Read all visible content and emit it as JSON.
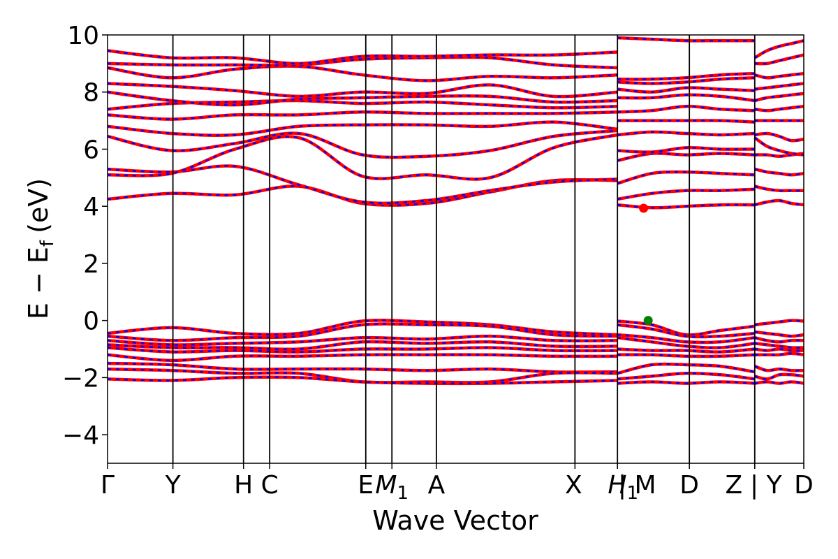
{
  "chart_data": {
    "type": "line",
    "title": "",
    "xlabel": "Wave Vector",
    "ylabel_main": "E − E",
    "ylabel_sub": "f",
    "ylabel_unit": "(eV)",
    "ylim": [
      -5,
      10
    ],
    "yticks": [
      -4,
      -2,
      0,
      2,
      4,
      6,
      8,
      10
    ],
    "ytick_labels": [
      "−4",
      "−2",
      "0",
      "2",
      "4",
      "6",
      "8",
      "10"
    ],
    "xlim": [
      0,
      10.65
    ],
    "kpath": [
      {
        "label": "Γ",
        "x": 0.0
      },
      {
        "label": "Y",
        "x": 1.0
      },
      {
        "label": "H",
        "x": 2.08
      },
      {
        "label": "C",
        "x": 2.48
      },
      {
        "label": "E",
        "x": 3.95
      },
      {
        "label": "M",
        "sub": "1",
        "x": 4.35
      },
      {
        "label": "A",
        "x": 5.03
      },
      {
        "label": "X",
        "x": 7.15
      },
      {
        "label": "H",
        "sub": "1",
        "x": 7.8
      },
      {
        "label": "| M",
        "x": 7.8
      },
      {
        "label": "D",
        "x": 8.9
      },
      {
        "label": "Z",
        "x": 9.9
      },
      {
        "label": "| Y",
        "x": 9.9
      },
      {
        "label": "D",
        "x": 10.65
      }
    ],
    "series": [
      {
        "color": "#ff0000",
        "style": "solid"
      },
      {
        "color": "#0000ff",
        "style": "dashed"
      }
    ],
    "segments": [
      {
        "x0": 0.0,
        "x1": 7.8,
        "valence": [
          [
            -0.45,
            -0.25,
            -0.45,
            -0.45,
            -0.02,
            -0.05,
            -0.15,
            -0.4,
            -0.5
          ],
          [
            -0.55,
            -0.7,
            -0.6,
            -0.55,
            -0.15,
            -0.15,
            -0.2,
            -0.5,
            -0.55
          ],
          [
            -0.7,
            -0.85,
            -0.8,
            -0.75,
            -0.6,
            -0.65,
            -0.55,
            -0.7,
            -0.7
          ],
          [
            -0.85,
            -0.95,
            -0.95,
            -1.0,
            -0.75,
            -0.8,
            -0.75,
            -0.9,
            -0.9
          ],
          [
            -0.95,
            -1.1,
            -1.05,
            -1.1,
            -1.0,
            -1.0,
            -0.95,
            -1.05,
            -1.05
          ],
          [
            -1.2,
            -1.4,
            -1.25,
            -1.25,
            -1.2,
            -1.2,
            -1.2,
            -1.25,
            -1.25
          ],
          [
            -1.5,
            -1.55,
            -1.7,
            -1.7,
            -1.7,
            -1.75,
            -1.7,
            -1.8,
            -1.8
          ],
          [
            -1.7,
            -1.75,
            -1.85,
            -1.85,
            -2.15,
            -2.15,
            -2.15,
            -1.85,
            -1.85
          ],
          [
            -2.05,
            -2.1,
            -2.0,
            -2.0,
            -2.15,
            -2.2,
            -2.2,
            -2.15,
            -2.1
          ]
        ],
        "conduction": [
          [
            4.25,
            4.45,
            4.4,
            4.7,
            4.1,
            4.1,
            4.5,
            4.9,
            4.9
          ],
          [
            5.3,
            5.2,
            5.4,
            4.75,
            4.15,
            4.2,
            4.55,
            4.85,
            4.95
          ],
          [
            5.1,
            5.15,
            6.0,
            6.4,
            5.05,
            5.1,
            5.0,
            6.05,
            6.5
          ],
          [
            6.45,
            5.95,
            6.2,
            6.55,
            5.8,
            5.75,
            5.95,
            6.45,
            6.65
          ],
          [
            6.8,
            6.55,
            6.5,
            6.8,
            6.85,
            6.85,
            6.8,
            6.95,
            6.7
          ],
          [
            7.2,
            7.05,
            7.2,
            7.2,
            7.3,
            7.25,
            7.25,
            7.25,
            7.3
          ],
          [
            7.4,
            7.6,
            7.65,
            7.7,
            7.6,
            7.65,
            7.55,
            7.45,
            7.5
          ],
          [
            8.0,
            7.7,
            7.55,
            7.75,
            7.8,
            7.85,
            7.85,
            7.65,
            7.7
          ],
          [
            8.3,
            8.2,
            8.05,
            7.85,
            8.0,
            7.95,
            8.25,
            7.85,
            8.0
          ],
          [
            8.85,
            8.5,
            8.8,
            8.9,
            8.6,
            8.4,
            8.55,
            8.5,
            8.6
          ],
          [
            9.0,
            8.95,
            8.95,
            8.95,
            9.15,
            9.2,
            9.2,
            8.95,
            8.85
          ],
          [
            9.45,
            9.2,
            9.2,
            9.0,
            9.25,
            9.25,
            9.3,
            9.3,
            9.4
          ]
        ]
      },
      {
        "x0": 7.8,
        "x1": 9.9,
        "valence": [
          [
            -0.02,
            -0.15,
            -0.5,
            -0.35,
            -0.2
          ],
          [
            -0.15,
            -0.3,
            -0.55,
            -0.55,
            -0.45
          ],
          [
            -0.5,
            -0.6,
            -0.75,
            -0.75,
            -0.6
          ],
          [
            -0.6,
            -0.75,
            -0.9,
            -0.95,
            -0.8
          ],
          [
            -1.0,
            -1.05,
            -1.05,
            -1.1,
            -1.0
          ],
          [
            -1.2,
            -1.2,
            -1.25,
            -1.25,
            -1.2
          ],
          [
            -1.85,
            -1.55,
            -1.55,
            -1.6,
            -1.8
          ],
          [
            -2.05,
            -1.95,
            -1.85,
            -1.9,
            -2.05
          ],
          [
            -2.2,
            -2.15,
            -2.2,
            -2.15,
            -2.2
          ]
        ],
        "conduction": [
          [
            4.05,
            3.95,
            4.0,
            4.05,
            4.05
          ],
          [
            4.25,
            4.45,
            4.55,
            4.55,
            4.6
          ],
          [
            4.8,
            5.15,
            5.2,
            5.15,
            5.1
          ],
          [
            5.6,
            5.85,
            5.8,
            5.85,
            5.8
          ],
          [
            5.95,
            5.9,
            6.05,
            6.0,
            6.0
          ],
          [
            6.5,
            6.6,
            6.55,
            6.5,
            6.55
          ],
          [
            7.0,
            7.0,
            7.0,
            7.0,
            6.95
          ],
          [
            7.3,
            7.35,
            7.5,
            7.4,
            7.35
          ],
          [
            7.8,
            7.8,
            7.9,
            7.85,
            7.7
          ],
          [
            8.1,
            8.0,
            8.15,
            8.1,
            8.05
          ],
          [
            8.35,
            8.3,
            8.35,
            8.45,
            8.5
          ],
          [
            8.45,
            8.45,
            8.5,
            8.6,
            8.65
          ],
          [
            9.9,
            9.85,
            9.8,
            9.8,
            9.8
          ]
        ]
      },
      {
        "x0": 9.9,
        "x1": 10.65,
        "valence": [
          [
            -0.15,
            -0.1,
            -0.05,
            0.0,
            -0.02
          ],
          [
            -0.4,
            -0.45,
            -0.5,
            -0.55,
            -0.5
          ],
          [
            -0.6,
            -0.7,
            -0.75,
            -0.7,
            -0.7
          ],
          [
            -0.8,
            -0.85,
            -0.9,
            -0.95,
            -0.95
          ],
          [
            -1.0,
            -1.05,
            -1.0,
            -1.05,
            -1.05
          ],
          [
            -1.2,
            -1.2,
            -1.2,
            -1.15,
            -1.2
          ],
          [
            -1.6,
            -1.75,
            -1.7,
            -1.75,
            -1.75
          ],
          [
            -1.95,
            -2.05,
            -1.9,
            -1.9,
            -1.95
          ],
          [
            -2.2,
            -2.15,
            -2.2,
            -2.15,
            -2.2
          ]
        ],
        "conduction": [
          [
            4.05,
            4.15,
            4.2,
            4.1,
            4.05
          ],
          [
            4.7,
            4.6,
            4.55,
            4.55,
            4.55
          ],
          [
            5.3,
            5.2,
            5.15,
            5.1,
            5.15
          ],
          [
            5.8,
            5.8,
            5.75,
            5.8,
            5.85
          ],
          [
            6.4,
            6.1,
            5.95,
            5.85,
            5.8
          ],
          [
            6.5,
            6.55,
            6.45,
            6.3,
            6.35
          ],
          [
            7.0,
            7.0,
            7.0,
            7.0,
            7.0
          ],
          [
            7.4,
            7.35,
            7.4,
            7.45,
            7.5
          ],
          [
            7.7,
            7.8,
            7.85,
            7.9,
            7.95
          ],
          [
            8.1,
            8.15,
            8.2,
            8.25,
            8.3
          ],
          [
            8.6,
            8.5,
            8.55,
            8.6,
            8.65
          ],
          [
            9.0,
            9.0,
            9.1,
            9.2,
            9.3
          ],
          [
            9.2,
            9.45,
            9.6,
            9.7,
            9.8
          ]
        ]
      }
    ],
    "markers": [
      {
        "name": "cbm",
        "x": 8.2,
        "y": 3.93,
        "color": "#ff0000"
      },
      {
        "name": "vbm",
        "x": 8.27,
        "y": 0.0,
        "color": "#008000"
      }
    ]
  }
}
